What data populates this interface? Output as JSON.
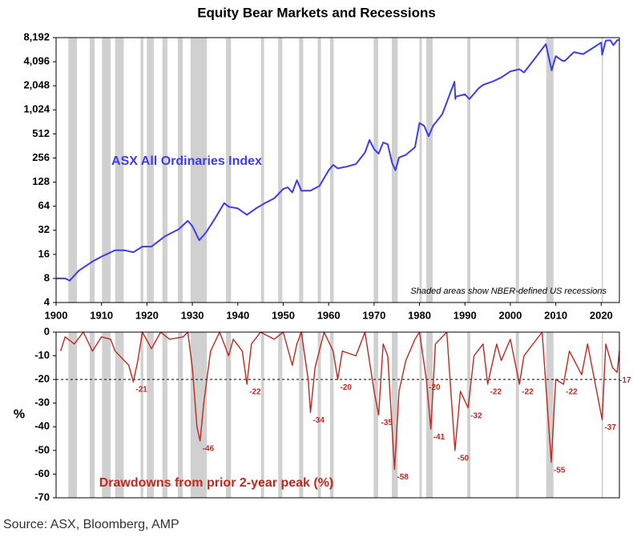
{
  "title": "Equity Bear Markets and Recessions",
  "source": "Source: ASX, Bloomberg, AMP",
  "chart_data": [
    {
      "type": "line",
      "yscale": "log",
      "xlim": [
        1900,
        2024
      ],
      "xticks": [
        1900,
        1910,
        1920,
        1930,
        1940,
        1950,
        1960,
        1970,
        1980,
        1990,
        2000,
        2010,
        2020
      ],
      "ylim": [
        4,
        8192
      ],
      "yticks": [
        4,
        8,
        16,
        32,
        64,
        128,
        256,
        512,
        {
          "value": 1024,
          "label": "1,024"
        },
        {
          "value": 2048,
          "label": "2,048"
        },
        {
          "value": 4096,
          "label": "4,096"
        },
        {
          "value": 8192,
          "label": "8,192"
        }
      ],
      "note": "Shaded areas show NBER-defined US recessions",
      "recession_color": "#d0d0d0",
      "recessions": [
        [
          1902.7,
          1904.6
        ],
        [
          1907.4,
          1908.5
        ],
        [
          1910.1,
          1912.0
        ],
        [
          1913.0,
          1914.9
        ],
        [
          1918.6,
          1919.2
        ],
        [
          1920.0,
          1921.5
        ],
        [
          1923.4,
          1924.5
        ],
        [
          1926.8,
          1927.9
        ],
        [
          1929.6,
          1933.2
        ],
        [
          1937.4,
          1938.5
        ],
        [
          1945.1,
          1945.8
        ],
        [
          1948.9,
          1949.8
        ],
        [
          1953.5,
          1954.4
        ],
        [
          1957.6,
          1958.3
        ],
        [
          1960.3,
          1961.1
        ],
        [
          1969.9,
          1970.9
        ],
        [
          1973.9,
          1975.2
        ],
        [
          1980.0,
          1980.5
        ],
        [
          1981.5,
          1982.9
        ],
        [
          1990.5,
          1991.2
        ],
        [
          2001.2,
          2001.9
        ],
        [
          2007.9,
          2009.5
        ],
        [
          2020.1,
          2020.4
        ]
      ],
      "series": [
        {
          "name": "ASX All Ordinaries Index",
          "color": "#3c3cf0",
          "x": [
            1900,
            1902,
            1903,
            1905,
            1908,
            1910,
            1913,
            1915,
            1917,
            1919,
            1921,
            1924,
            1927,
            1929,
            1930,
            1931.5,
            1933,
            1935,
            1937,
            1938,
            1940,
            1942,
            1944,
            1946,
            1948,
            1950,
            1951,
            1952,
            1953,
            1954,
            1956,
            1958,
            1960,
            1961,
            1962,
            1964,
            1966,
            1968,
            1969,
            1970,
            1971,
            1972,
            1973,
            1974,
            1974.7,
            1975.5,
            1977,
            1979,
            1980,
            1981,
            1982,
            1983,
            1985,
            1987.7,
            1987.9,
            1988,
            1990,
            1991,
            1993,
            1994,
            1996,
            1998,
            2000,
            2002,
            2003,
            2005,
            2007.8,
            2009.1,
            2010,
            2011.5,
            2012,
            2014,
            2016,
            2018,
            2020,
            2020.2,
            2021,
            2022,
            2022.7,
            2023.5,
            2024
          ],
          "values": [
            8,
            8,
            7.5,
            10,
            13,
            15,
            18,
            18,
            17,
            20,
            20,
            27,
            33,
            42,
            36,
            24,
            30,
            45,
            70,
            63,
            60,
            50,
            60,
            70,
            80,
            105,
            110,
            95,
            135,
            100,
            100,
            115,
            180,
            210,
            190,
            200,
            215,
            300,
            430,
            330,
            290,
            400,
            380,
            220,
            180,
            260,
            280,
            350,
            700,
            650,
            480,
            650,
            900,
            2300,
            1400,
            1500,
            1600,
            1400,
            1900,
            2100,
            2300,
            2600,
            3100,
            3300,
            3000,
            4200,
            6800,
            3200,
            4800,
            4200,
            4200,
            5400,
            5100,
            6000,
            7100,
            5000,
            7500,
            7600,
            6600,
            7600,
            7700
          ]
        }
      ]
    },
    {
      "type": "line",
      "xlim": [
        1900,
        2024
      ],
      "ylim": [
        -70,
        0
      ],
      "yticks": [
        0,
        -10,
        -20,
        -30,
        -40,
        -50,
        -60,
        -70
      ],
      "ylabel": "%",
      "reference_line": -20,
      "recession_color": "#d0d0d0",
      "recessions": [
        [
          1902.7,
          1904.6
        ],
        [
          1907.4,
          1908.5
        ],
        [
          1910.1,
          1912.0
        ],
        [
          1913.0,
          1914.9
        ],
        [
          1918.6,
          1919.2
        ],
        [
          1920.0,
          1921.5
        ],
        [
          1923.4,
          1924.5
        ],
        [
          1926.8,
          1927.9
        ],
        [
          1929.6,
          1933.2
        ],
        [
          1937.4,
          1938.5
        ],
        [
          1945.1,
          1945.8
        ],
        [
          1948.9,
          1949.8
        ],
        [
          1953.5,
          1954.4
        ],
        [
          1957.6,
          1958.3
        ],
        [
          1960.3,
          1961.1
        ],
        [
          1969.9,
          1970.9
        ],
        [
          1973.9,
          1975.2
        ],
        [
          1980.0,
          1980.5
        ],
        [
          1981.5,
          1982.9
        ],
        [
          1990.5,
          1991.2
        ],
        [
          2001.2,
          2001.9
        ],
        [
          2007.9,
          2009.5
        ],
        [
          2020.1,
          2020.4
        ]
      ],
      "series": [
        {
          "name": "Drawdowns from prior 2-year peak (%)",
          "color": "#c0281e",
          "x": [
            1901,
            1902,
            1904,
            1906,
            1908,
            1910,
            1912,
            1913,
            1916,
            1917,
            1918,
            1919,
            1921,
            1923,
            1925,
            1928,
            1929,
            1930,
            1931,
            1931.7,
            1932.5,
            1934,
            1936,
            1938,
            1939,
            1941,
            1942,
            1943,
            1945,
            1948,
            1950,
            1952,
            1953,
            1954,
            1955.5,
            1956,
            1957,
            1959,
            1961,
            1962,
            1963,
            1966,
            1968,
            1970,
            1971,
            1972,
            1973,
            1974.5,
            1975.5,
            1977,
            1979,
            1980,
            1981.5,
            1982.5,
            1983.5,
            1986,
            1987.8,
            1989,
            1990.7,
            1992,
            1994,
            1995,
            1997,
            1998,
            2000,
            2002,
            2003,
            2007,
            2009,
            2010,
            2011.7,
            2013,
            2015.7,
            2017,
            2020.2,
            2021,
            2022.5,
            2023.5,
            2024
          ],
          "values": [
            -8,
            -2,
            -5,
            0,
            -8,
            -2,
            -3,
            -8,
            -14,
            -21,
            -12,
            0,
            -7,
            0,
            -3,
            -2,
            0,
            -15,
            -40,
            -46,
            -30,
            -8,
            0,
            -10,
            -3,
            -8,
            -22,
            -5,
            0,
            -3,
            0,
            -14,
            -5,
            0,
            -20,
            -34,
            -15,
            0,
            -8,
            -20,
            -8,
            -10,
            0,
            -25,
            -35,
            -5,
            -10,
            -58,
            -25,
            -12,
            -3,
            0,
            -20,
            -41,
            -5,
            0,
            -50,
            -25,
            -32,
            -10,
            -5,
            -22,
            -5,
            -12,
            -3,
            -22,
            -10,
            0,
            -55,
            -20,
            -22,
            -8,
            -18,
            -5,
            -37,
            -5,
            -15,
            -17,
            -8
          ]
        }
      ],
      "annotations": [
        {
          "x": 1917,
          "value": -21
        },
        {
          "x": 1931.7,
          "value": -46
        },
        {
          "x": 1942,
          "value": -22
        },
        {
          "x": 1956,
          "value": -34
        },
        {
          "x": 1962,
          "value": -20
        },
        {
          "x": 1971,
          "value": -35
        },
        {
          "x": 1974.5,
          "value": -58
        },
        {
          "x": 1981.5,
          "value": -20
        },
        {
          "x": 1982.5,
          "value": -41
        },
        {
          "x": 1987.8,
          "value": -50
        },
        {
          "x": 1990.7,
          "value": -32
        },
        {
          "x": 1995,
          "value": -22
        },
        {
          "x": 2002,
          "value": -22
        },
        {
          "x": 2009,
          "value": -55
        },
        {
          "x": 2011.7,
          "value": -22
        },
        {
          "x": 2020.2,
          "value": -37
        },
        {
          "x": 2023.5,
          "value": -17
        }
      ]
    }
  ]
}
